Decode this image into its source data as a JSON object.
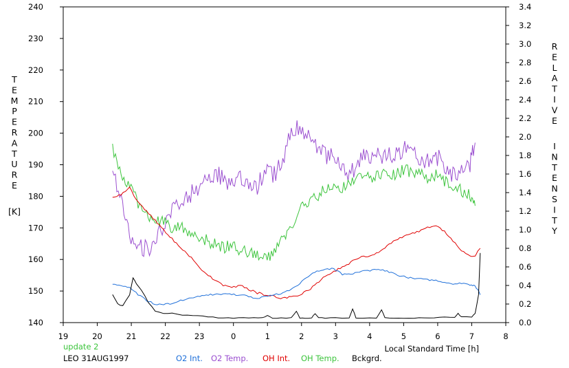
{
  "chart_data": {
    "type": "line",
    "xlabel": "Local Standard Time [h]",
    "ylabel_left_letters": [
      "T",
      "E",
      "M",
      "P",
      "E",
      "R",
      "A",
      "T",
      "U",
      "R",
      "E"
    ],
    "ylabel_left_unit": "[K]",
    "ylabel_right_letters_1": [
      "R",
      "E",
      "L",
      "A",
      "T",
      "I",
      "V",
      "E"
    ],
    "ylabel_right_letters_2": [
      "I",
      "N",
      "T",
      "E",
      "N",
      "S",
      "I",
      "T",
      "Y"
    ],
    "x_ticks": [
      19,
      20,
      21,
      22,
      23,
      0,
      1,
      2,
      3,
      4,
      5,
      6,
      7,
      8
    ],
    "x_axis": {
      "min": 19,
      "max": 32
    },
    "ylim_left": [
      140,
      240
    ],
    "y_ticks_left": [
      140,
      150,
      160,
      170,
      180,
      190,
      200,
      210,
      220,
      230,
      240
    ],
    "ylim_right": [
      0,
      3.4
    ],
    "y_ticks_right": [
      "0.0",
      "0.2",
      "0.4",
      "0.6",
      "0.8",
      "1.0",
      "1.2",
      "1.4",
      "1.6",
      "1.8",
      "2.0",
      "2.2",
      "2.4",
      "2.6",
      "2.8",
      "3.0",
      "3.2",
      "3.4"
    ],
    "colors": {
      "o2_int": "#1e6fd9",
      "o2_temp": "#9b4fd0",
      "oh_int": "#e00000",
      "oh_temp": "#3cc43c",
      "bckgrd": "#000000"
    },
    "series": [
      {
        "name": "O2 Temp.",
        "axis": "left",
        "x": [
          20.45,
          20.7,
          20.95,
          21.2,
          21.45,
          21.7,
          21.95,
          22.2,
          22.45,
          22.7,
          22.95,
          23.2,
          23.45,
          23.7,
          23.95,
          24.2,
          24.45,
          24.7,
          24.95,
          25.2,
          25.45,
          25.7,
          25.95,
          26.2,
          26.45,
          26.7,
          26.95,
          27.2,
          27.45,
          27.7,
          27.95,
          28.2,
          28.45,
          28.7,
          28.95,
          29.2,
          29.45,
          29.7,
          29.95,
          30.2,
          30.45,
          30.7,
          30.95,
          31.1
        ],
        "y": [
          188,
          178,
          168,
          165,
          163,
          166,
          170,
          175,
          178,
          180,
          183,
          185,
          187,
          186,
          184,
          185,
          182,
          183,
          188,
          187,
          192,
          200,
          203,
          198,
          195,
          193,
          192,
          188,
          187,
          191,
          193,
          194,
          192,
          193,
          195,
          194,
          192,
          191,
          193,
          190,
          187,
          189,
          190,
          197
        ]
      },
      {
        "name": "OH Temp.",
        "axis": "left",
        "x": [
          20.45,
          20.7,
          20.95,
          21.2,
          21.45,
          21.7,
          21.95,
          22.2,
          22.45,
          22.7,
          22.95,
          23.2,
          23.45,
          23.7,
          23.95,
          24.2,
          24.45,
          24.7,
          24.95,
          25.2,
          25.45,
          25.7,
          25.95,
          26.2,
          26.45,
          26.7,
          26.95,
          27.2,
          27.45,
          27.7,
          27.95,
          28.2,
          28.45,
          28.7,
          28.95,
          29.2,
          29.45,
          29.7,
          29.95,
          30.2,
          30.45,
          30.7,
          30.95,
          31.1
        ],
        "y": [
          195,
          186,
          184,
          178,
          174,
          172,
          172,
          170,
          170,
          169,
          167,
          166,
          165,
          164,
          164,
          163,
          162,
          161,
          160,
          162,
          167,
          170,
          176,
          178,
          180,
          182,
          182,
          183,
          185,
          186,
          186,
          186,
          187,
          187,
          188,
          188,
          187,
          186,
          187,
          185,
          183,
          182,
          180,
          177
        ]
      },
      {
        "name": "OH Int.",
        "axis": "right",
        "x": [
          20.45,
          20.7,
          20.95,
          21.2,
          21.45,
          21.7,
          21.95,
          22.2,
          22.45,
          22.7,
          22.95,
          23.2,
          23.45,
          23.7,
          23.95,
          24.2,
          24.45,
          24.7,
          24.95,
          25.2,
          25.45,
          25.7,
          25.95,
          26.2,
          26.45,
          26.7,
          26.95,
          27.2,
          27.45,
          27.7,
          27.95,
          28.2,
          28.45,
          28.7,
          28.95,
          29.2,
          29.45,
          29.7,
          29.95,
          30.2,
          30.45,
          30.7,
          30.95,
          31.1,
          31.25
        ],
        "y": [
          1.35,
          1.38,
          1.45,
          1.3,
          1.2,
          1.1,
          1.0,
          0.9,
          0.8,
          0.72,
          0.62,
          0.52,
          0.46,
          0.4,
          0.38,
          0.4,
          0.36,
          0.32,
          0.3,
          0.28,
          0.26,
          0.28,
          0.3,
          0.35,
          0.42,
          0.5,
          0.55,
          0.6,
          0.65,
          0.7,
          0.72,
          0.75,
          0.8,
          0.88,
          0.92,
          0.95,
          0.98,
          1.02,
          1.05,
          0.98,
          0.88,
          0.78,
          0.72,
          0.72,
          0.8
        ]
      },
      {
        "name": "O2 Int.",
        "axis": "right",
        "x": [
          20.45,
          20.7,
          20.95,
          21.2,
          21.45,
          21.7,
          21.95,
          22.2,
          22.45,
          22.7,
          22.95,
          23.2,
          23.45,
          23.7,
          23.95,
          24.2,
          24.45,
          24.7,
          24.95,
          25.2,
          25.45,
          25.7,
          25.95,
          26.2,
          26.45,
          26.7,
          26.95,
          27.2,
          27.45,
          27.7,
          27.95,
          28.2,
          28.45,
          28.7,
          28.95,
          29.2,
          29.45,
          29.7,
          29.95,
          30.2,
          30.45,
          30.7,
          30.95,
          31.1,
          31.25
        ],
        "y": [
          0.42,
          0.4,
          0.38,
          0.3,
          0.24,
          0.2,
          0.2,
          0.2,
          0.24,
          0.26,
          0.28,
          0.3,
          0.3,
          0.31,
          0.3,
          0.3,
          0.28,
          0.26,
          0.28,
          0.3,
          0.32,
          0.36,
          0.42,
          0.5,
          0.55,
          0.58,
          0.58,
          0.52,
          0.52,
          0.55,
          0.56,
          0.57,
          0.56,
          0.53,
          0.5,
          0.48,
          0.47,
          0.46,
          0.45,
          0.44,
          0.42,
          0.42,
          0.41,
          0.4,
          0.3
        ]
      },
      {
        "name": "Bckgrd.",
        "axis": "right",
        "x": [
          20.45,
          20.6,
          20.75,
          20.95,
          21.05,
          21.15,
          21.3,
          21.5,
          21.7,
          21.95,
          22.2,
          22.5,
          22.8,
          23.1,
          23.4,
          23.7,
          24.0,
          24.3,
          24.6,
          24.85,
          25.0,
          25.15,
          25.4,
          25.7,
          25.85,
          25.95,
          26.1,
          26.3,
          26.4,
          26.5,
          26.7,
          27.0,
          27.4,
          27.5,
          27.6,
          27.8,
          28.2,
          28.35,
          28.45,
          28.7,
          29.0,
          29.3,
          29.6,
          29.9,
          30.2,
          30.5,
          30.6,
          30.7,
          31.0,
          31.1,
          31.2,
          31.25
        ],
        "y": [
          0.3,
          0.2,
          0.18,
          0.3,
          0.48,
          0.42,
          0.35,
          0.22,
          0.12,
          0.1,
          0.1,
          0.08,
          0.08,
          0.07,
          0.06,
          0.05,
          0.05,
          0.05,
          0.05,
          0.05,
          0.08,
          0.05,
          0.05,
          0.05,
          0.12,
          0.05,
          0.05,
          0.05,
          0.1,
          0.05,
          0.05,
          0.05,
          0.05,
          0.15,
          0.05,
          0.05,
          0.05,
          0.14,
          0.05,
          0.05,
          0.05,
          0.05,
          0.05,
          0.05,
          0.06,
          0.06,
          0.1,
          0.06,
          0.06,
          0.1,
          0.3,
          0.75
        ]
      }
    ]
  },
  "footer": {
    "update": "update 2",
    "station": "LEO 31AUG1997",
    "legend": [
      {
        "label": "O2 Int.",
        "color": "#1e6fd9"
      },
      {
        "label": "O2 Temp.",
        "color": "#9b4fd0"
      },
      {
        "label": "OH Int.",
        "color": "#e00000"
      },
      {
        "label": "OH Temp.",
        "color": "#3cc43c"
      },
      {
        "label": "Bckgrd.",
        "color": "#000000"
      }
    ]
  }
}
